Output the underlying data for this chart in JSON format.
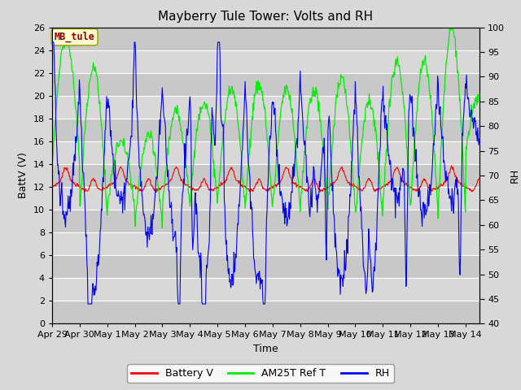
{
  "title": "Mayberry Tule Tower: Volts and RH",
  "xlabel": "Time",
  "ylabel_left": "BattV (V)",
  "ylabel_right": "RH",
  "station_label": "MB_tule",
  "xlim": [
    0,
    15.5
  ],
  "ylim_left": [
    0,
    26
  ],
  "ylim_right": [
    40,
    100
  ],
  "yticks_left": [
    0,
    2,
    4,
    6,
    8,
    10,
    12,
    14,
    16,
    18,
    20,
    22,
    24,
    26
  ],
  "yticks_right": [
    40,
    45,
    50,
    55,
    60,
    65,
    70,
    75,
    80,
    85,
    90,
    95,
    100
  ],
  "color_battery": "#ff0000",
  "color_am25t": "#00ee00",
  "color_rh": "#0000ff",
  "background_color": "#d8d8d8",
  "plot_bg_color": "#d0d0d0",
  "grid_color": "#e8e8e8",
  "legend_labels": [
    "Battery V",
    "AM25T Ref T",
    "RH"
  ],
  "title_fontsize": 11,
  "axis_fontsize": 9,
  "tick_fontsize": 8,
  "legend_fontsize": 9,
  "x_tick_labels": [
    "Apr 29",
    "Apr 30",
    "May 1",
    "May 2",
    "May 3",
    "May 4",
    "May 5",
    "May 6",
    "May 7",
    "May 8",
    "May 9",
    "May 10",
    "May 11",
    "May 12",
    "May 13",
    "May 14"
  ],
  "x_tick_positions": [
    0,
    1,
    2,
    3,
    4,
    5,
    6,
    7,
    8,
    9,
    10,
    11,
    12,
    13,
    14,
    15
  ]
}
